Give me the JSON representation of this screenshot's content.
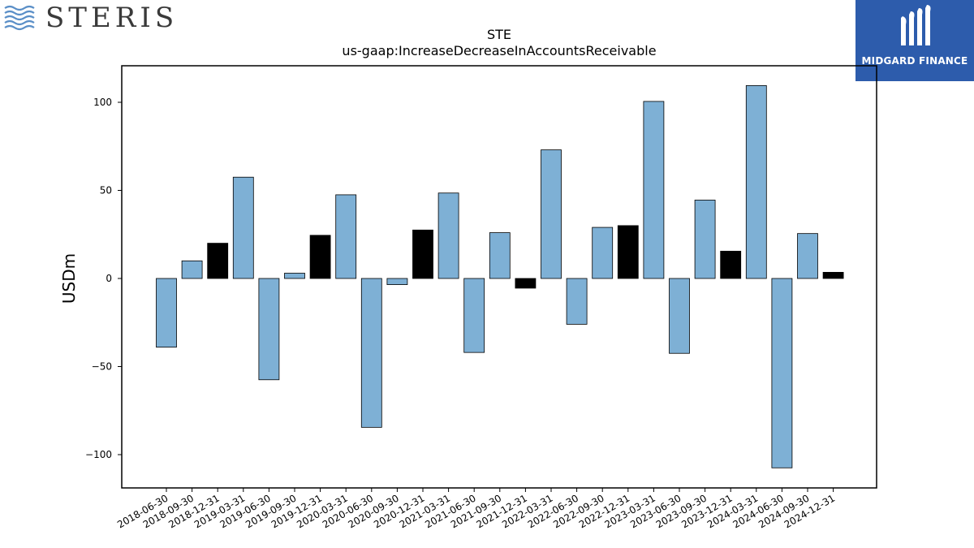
{
  "brand_left": {
    "name": "STERIS"
  },
  "brand_right": {
    "name": "MIDGARD FINANCE"
  },
  "chart_data": {
    "type": "bar",
    "title": "STE",
    "subtitle": "us-gaap:IncreaseDecreaseInAccountsReceivable",
    "ylabel": "USDm",
    "xlabel": "",
    "ylim": [
      -120,
      120
    ],
    "yticks": [
      -100,
      -50,
      0,
      50,
      100
    ],
    "ytick_labels": [
      "−100",
      "−50",
      "0",
      "50",
      "100"
    ],
    "grid": false,
    "colors": {
      "quarter": "#7eb0d5",
      "fiscal_year_end": "#000000"
    },
    "categories": [
      "2018-06-30",
      "2018-09-30",
      "2018-12-31",
      "2019-03-31",
      "2019-06-30",
      "2019-09-30",
      "2019-12-31",
      "2020-03-31",
      "2020-06-30",
      "2020-09-30",
      "2020-12-31",
      "2021-03-31",
      "2021-06-30",
      "2021-09-30",
      "2021-12-31",
      "2022-03-31",
      "2022-06-30",
      "2022-09-30",
      "2022-12-31",
      "2023-03-31",
      "2023-06-30",
      "2023-09-30",
      "2023-12-31",
      "2024-03-31",
      "2024-06-30",
      "2024-09-30",
      "2024-12-31"
    ],
    "values": [
      -39,
      10,
      20,
      57.5,
      -57.5,
      3,
      24.5,
      47.5,
      -84.5,
      -3.5,
      27.5,
      48.5,
      -42,
      26,
      -5.5,
      73,
      -26,
      29,
      30,
      100.5,
      -42.5,
      44.5,
      15.5,
      109.5,
      -107.5,
      25.5,
      3.5
    ],
    "bar_color_keys": [
      "quarter",
      "quarter",
      "fiscal_year_end",
      "quarter",
      "quarter",
      "quarter",
      "fiscal_year_end",
      "quarter",
      "quarter",
      "quarter",
      "fiscal_year_end",
      "quarter",
      "quarter",
      "quarter",
      "fiscal_year_end",
      "quarter",
      "quarter",
      "quarter",
      "fiscal_year_end",
      "quarter",
      "quarter",
      "quarter",
      "fiscal_year_end",
      "quarter",
      "quarter",
      "quarter",
      "fiscal_year_end"
    ]
  }
}
